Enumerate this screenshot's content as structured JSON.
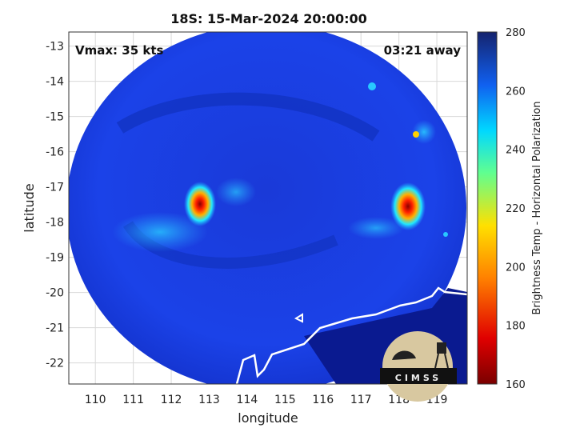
{
  "title": "18S: 15-Mar-2024 20:00:00",
  "annotations": {
    "vmax": "Vmax: 35 kts",
    "time_away": "03:21 away"
  },
  "axes": {
    "xlabel": "longitude",
    "ylabel": "latitude",
    "xticks": [
      "110",
      "111",
      "112",
      "113",
      "114",
      "115",
      "116",
      "117",
      "118",
      "119"
    ],
    "yticks": [
      "-13",
      "-14",
      "-15",
      "-16",
      "-17",
      "-18",
      "-19",
      "-20",
      "-21",
      "-22"
    ]
  },
  "colorbar": {
    "label": "Brightness Temp - Horizontal Polarization",
    "ticks": [
      "280",
      "260",
      "240",
      "220",
      "200",
      "180",
      "160"
    ]
  },
  "logo": {
    "text": "CIMSS"
  },
  "colors": {
    "background_field": "#1f3fe0",
    "deep_field": "#0a1a90",
    "warm_low": "#7a0000",
    "high": "#15236e"
  },
  "map_data": {
    "lon_range": [
      109.3,
      119.8
    ],
    "lat_range": [
      -22.6,
      -12.6
    ],
    "storm_center": [
      112.8,
      -17.6
    ],
    "coldest_cells": [
      [
        112.8,
        -17.7
      ],
      [
        118.3,
        -17.6
      ]
    ]
  }
}
